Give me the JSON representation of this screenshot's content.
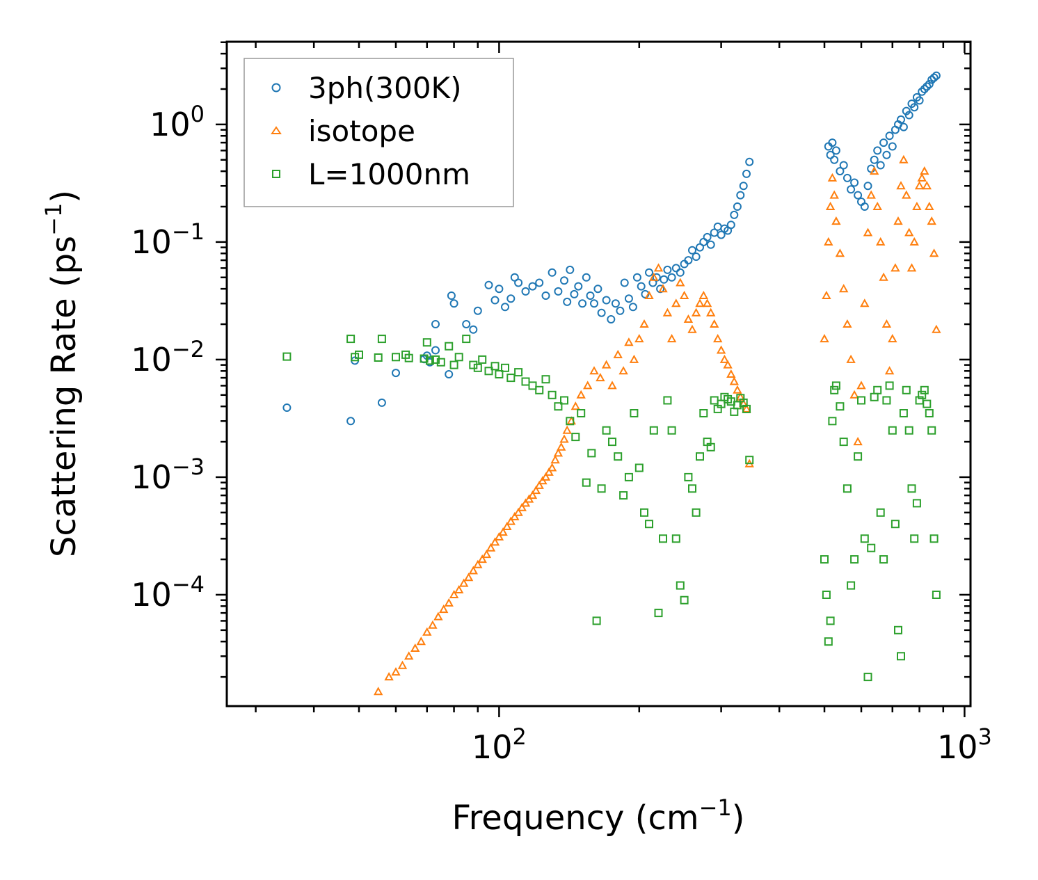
{
  "chart_data": {
    "type": "scatter",
    "xscale": "log",
    "yscale": "log",
    "xlim": [
      26,
      1030
    ],
    "ylim": [
      1.13e-05,
      5.05
    ],
    "xlabel": "Frequency (cm",
    "xlabel_sup": "−1",
    "xlabel_end": ")",
    "ylabel": "Scattering Rate (ps",
    "ylabel_sup": "−1",
    "ylabel_end": ")",
    "x_ticks": [
      {
        "value": 100,
        "base": "10",
        "exp": "2"
      },
      {
        "value": 1000,
        "base": "10",
        "exp": "3"
      }
    ],
    "y_ticks": [
      {
        "value": 1,
        "base": "10",
        "exp": "0"
      },
      {
        "value": 0.1,
        "base": "10",
        "exp": "−1"
      },
      {
        "value": 0.01,
        "base": "10",
        "exp": "−2"
      },
      {
        "value": 0.001,
        "base": "10",
        "exp": "−3"
      },
      {
        "value": 0.0001,
        "base": "10",
        "exp": "−4"
      }
    ],
    "legend_position": "top-left",
    "series": [
      {
        "name": "3ph(300K)",
        "marker": "circle",
        "color": "#1f77b4",
        "x": [
          35,
          48,
          49,
          56,
          60,
          69,
          70,
          71,
          73,
          73,
          78,
          79,
          80,
          85,
          88,
          90,
          95,
          98,
          100,
          103,
          106,
          108,
          110,
          114,
          118,
          122,
          126,
          130,
          134,
          138,
          140,
          142,
          145,
          148,
          151,
          154,
          157,
          160,
          163,
          166,
          170,
          174,
          178,
          182,
          186,
          190,
          194,
          198,
          202,
          206,
          210,
          214,
          218,
          222,
          226,
          230,
          235,
          240,
          245,
          250,
          255,
          260,
          265,
          270,
          275,
          280,
          285,
          290,
          295,
          300,
          305,
          310,
          315,
          320,
          325,
          330,
          335,
          340,
          345,
          510,
          515,
          520,
          525,
          530,
          540,
          550,
          560,
          570,
          580,
          590,
          600,
          610,
          620,
          630,
          640,
          650,
          660,
          670,
          680,
          690,
          700,
          710,
          720,
          730,
          740,
          750,
          760,
          770,
          780,
          790,
          800,
          810,
          820,
          830,
          840,
          850,
          860,
          870
        ],
        "y": [
          0.0039,
          0.003,
          0.0098,
          0.0043,
          0.0077,
          0.0101,
          0.0108,
          0.0095,
          0.012,
          0.02,
          0.0075,
          0.035,
          0.03,
          0.02,
          0.018,
          0.026,
          0.043,
          0.032,
          0.04,
          0.028,
          0.033,
          0.05,
          0.045,
          0.038,
          0.042,
          0.045,
          0.035,
          0.055,
          0.038,
          0.047,
          0.031,
          0.058,
          0.036,
          0.042,
          0.03,
          0.05,
          0.035,
          0.03,
          0.04,
          0.025,
          0.032,
          0.022,
          0.03,
          0.026,
          0.045,
          0.033,
          0.028,
          0.05,
          0.042,
          0.036,
          0.055,
          0.045,
          0.05,
          0.04,
          0.048,
          0.058,
          0.05,
          0.06,
          0.055,
          0.065,
          0.07,
          0.085,
          0.075,
          0.09,
          0.1,
          0.11,
          0.095,
          0.12,
          0.135,
          0.115,
          0.13,
          0.125,
          0.14,
          0.17,
          0.2,
          0.25,
          0.3,
          0.38,
          0.48,
          0.65,
          0.55,
          0.7,
          0.5,
          0.6,
          0.4,
          0.45,
          0.35,
          0.28,
          0.32,
          0.25,
          0.22,
          0.2,
          0.3,
          0.42,
          0.5,
          0.6,
          0.45,
          0.7,
          0.55,
          0.8,
          0.65,
          0.9,
          1.0,
          1.1,
          0.95,
          1.3,
          1.2,
          1.5,
          1.4,
          1.7,
          1.6,
          1.9,
          2.0,
          2.1,
          2.2,
          2.4,
          2.5,
          2.6
        ]
      },
      {
        "name": "isotope",
        "marker": "triangle",
        "color": "#ff7f0e",
        "x": [
          52,
          55,
          58,
          60,
          62,
          64,
          66,
          68,
          70,
          72,
          74,
          76,
          78,
          80,
          82,
          84,
          86,
          88,
          90,
          92,
          94,
          96,
          98,
          100,
          102,
          104,
          106,
          108,
          110,
          112,
          114,
          116,
          118,
          120,
          122,
          124,
          126,
          128,
          130,
          132,
          134,
          136,
          138,
          140,
          143,
          146,
          150,
          155,
          160,
          165,
          170,
          175,
          180,
          185,
          190,
          195,
          200,
          205,
          210,
          215,
          220,
          225,
          230,
          235,
          240,
          245,
          250,
          255,
          260,
          265,
          270,
          275,
          280,
          285,
          290,
          295,
          300,
          305,
          310,
          315,
          320,
          325,
          330,
          335,
          340,
          345,
          500,
          505,
          510,
          515,
          520,
          525,
          530,
          540,
          550,
          560,
          570,
          580,
          590,
          600,
          610,
          620,
          630,
          640,
          650,
          660,
          670,
          680,
          690,
          700,
          710,
          720,
          730,
          740,
          750,
          760,
          770,
          780,
          790,
          800,
          810,
          820,
          830,
          840,
          850,
          860,
          870
        ],
        "y": [
          1.1e-05,
          1.5e-05,
          2e-05,
          2.2e-05,
          2.5e-05,
          3e-05,
          3.5e-05,
          4e-05,
          4.8e-05,
          5.5e-05,
          6.5e-05,
          7.5e-05,
          8.5e-05,
          0.0001,
          0.00011,
          0.000125,
          0.00014,
          0.00016,
          0.00018,
          0.0002,
          0.00022,
          0.00025,
          0.00028,
          0.00031,
          0.00034,
          0.00038,
          0.00042,
          0.00046,
          0.0005,
          0.00055,
          0.0006,
          0.00065,
          0.0007,
          0.00077,
          0.00085,
          0.00093,
          0.001,
          0.0011,
          0.0012,
          0.0014,
          0.0016,
          0.0018,
          0.0021,
          0.0025,
          0.003,
          0.004,
          0.005,
          0.006,
          0.008,
          0.007,
          0.009,
          0.006,
          0.011,
          0.008,
          0.014,
          0.01,
          0.015,
          0.02,
          0.035,
          0.05,
          0.06,
          0.04,
          0.025,
          0.015,
          0.03,
          0.045,
          0.035,
          0.022,
          0.018,
          0.025,
          0.03,
          0.035,
          0.03,
          0.025,
          0.02,
          0.015,
          0.012,
          0.01,
          0.009,
          0.0075,
          0.0065,
          0.0055,
          0.0048,
          0.0042,
          0.0038,
          0.0013,
          0.015,
          0.035,
          0.1,
          0.2,
          0.35,
          0.25,
          0.15,
          0.08,
          0.04,
          0.02,
          0.01,
          0.005,
          0.002,
          0.006,
          0.03,
          0.12,
          0.25,
          0.4,
          0.2,
          0.1,
          0.05,
          0.02,
          0.008,
          0.015,
          0.06,
          0.15,
          0.3,
          0.5,
          0.25,
          0.12,
          0.06,
          0.1,
          0.2,
          0.3,
          0.35,
          0.4,
          0.3,
          0.2,
          0.15,
          0.08,
          0.018
        ]
      },
      {
        "name": "L=1000nm",
        "marker": "square",
        "color": "#2ca02c",
        "x": [
          35,
          48,
          49,
          50,
          55,
          56,
          60,
          63,
          64,
          69,
          70,
          71,
          73,
          75,
          78,
          80,
          82,
          85,
          88,
          90,
          92,
          95,
          98,
          100,
          103,
          106,
          110,
          114,
          118,
          122,
          126,
          130,
          134,
          138,
          142,
          146,
          150,
          154,
          158,
          162,
          166,
          170,
          175,
          180,
          185,
          190,
          195,
          200,
          205,
          210,
          215,
          220,
          225,
          230,
          235,
          240,
          245,
          250,
          255,
          260,
          265,
          270,
          275,
          280,
          285,
          290,
          295,
          300,
          305,
          310,
          315,
          320,
          325,
          330,
          335,
          340,
          345,
          500,
          505,
          510,
          515,
          520,
          525,
          530,
          540,
          550,
          560,
          570,
          580,
          590,
          600,
          610,
          620,
          630,
          640,
          650,
          660,
          670,
          680,
          690,
          700,
          710,
          720,
          730,
          740,
          750,
          760,
          770,
          780,
          790,
          800,
          810,
          820,
          830,
          840,
          850,
          860,
          870
        ],
        "y": [
          0.0106,
          0.015,
          0.0105,
          0.011,
          0.0104,
          0.015,
          0.0105,
          0.011,
          0.0103,
          0.0102,
          0.014,
          0.0098,
          0.01,
          0.0095,
          0.013,
          0.009,
          0.0105,
          0.015,
          0.009,
          0.0085,
          0.01,
          0.008,
          0.0088,
          0.0075,
          0.0085,
          0.007,
          0.0078,
          0.0065,
          0.006,
          0.0055,
          0.0068,
          0.005,
          0.004,
          0.0045,
          0.003,
          0.0022,
          0.0035,
          0.0009,
          0.0016,
          6e-05,
          0.0008,
          0.0025,
          0.002,
          0.0015,
          0.0007,
          0.001,
          0.0035,
          0.0012,
          0.0005,
          0.0004,
          0.0025,
          7e-05,
          0.0003,
          0.0045,
          0.0025,
          0.0003,
          0.00012,
          9e-05,
          0.001,
          0.0008,
          0.0005,
          0.0015,
          0.0035,
          0.002,
          0.0018,
          0.0045,
          0.0038,
          0.0042,
          0.0048,
          0.0046,
          0.0044,
          0.0036,
          0.0041,
          0.0047,
          0.0043,
          0.0038,
          0.0014,
          0.0002,
          0.0001,
          4e-05,
          6e-05,
          0.003,
          0.0055,
          0.006,
          0.004,
          0.002,
          0.0008,
          0.00012,
          0.0002,
          0.0015,
          0.0045,
          0.0003,
          2e-05,
          0.00025,
          0.0048,
          0.0055,
          0.0005,
          0.0002,
          0.0045,
          0.006,
          0.0025,
          0.0004,
          5e-05,
          3e-05,
          0.0035,
          0.0055,
          0.0025,
          0.0008,
          0.0003,
          0.0006,
          0.0045,
          0.005,
          0.0055,
          0.0042,
          0.0035,
          0.0025,
          0.0003,
          0.0001
        ]
      }
    ]
  }
}
